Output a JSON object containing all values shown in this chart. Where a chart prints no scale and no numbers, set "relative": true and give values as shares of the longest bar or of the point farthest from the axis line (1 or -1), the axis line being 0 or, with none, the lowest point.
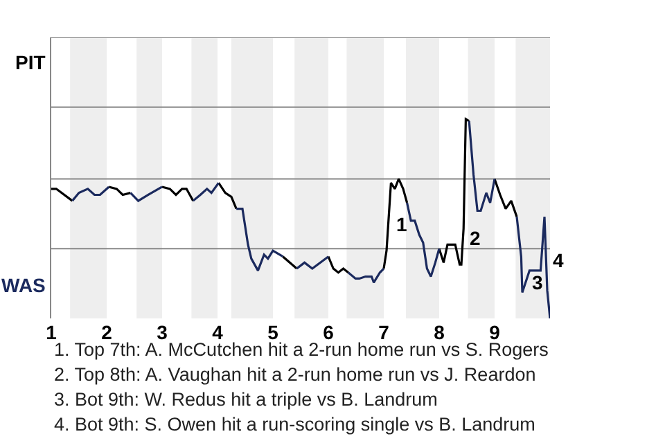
{
  "chart_data": {
    "type": "line",
    "relative": true,
    "xlim": [
      1,
      10
    ],
    "xticks": [
      1,
      2,
      3,
      4,
      5,
      6,
      7,
      8,
      9
    ],
    "ref_lines": [
      {
        "axis": "y",
        "value": 0.35,
        "color": "#888888"
      },
      {
        "axis": "y",
        "value": 0.7,
        "color": "#888888"
      },
      {
        "axis": "y",
        "value": 1.06,
        "color": "#888888"
      },
      {
        "axis": "y",
        "value": 1.41,
        "color": "#888888"
      }
    ],
    "marker": "none",
    "line_style": "solid",
    "series": [
      {
        "color": "#000000",
        "x": [
          1,
          1.09,
          1.38,
          null,
          2.04,
          2.18,
          2.29,
          2.43,
          null,
          3,
          3.14,
          3.25,
          3.36,
          3.44,
          3.56,
          null,
          4.02,
          4.14,
          4.25,
          4.34,
          null,
          5.18,
          5.43,
          null,
          6,
          6.09,
          6.18,
          6.27,
          6.36,
          null,
          7,
          7.05,
          7.13,
          7.2,
          7.27,
          7.35,
          7.42,
          null,
          8,
          8.08,
          8.15,
          8.29,
          8.37,
          8.4,
          8.44,
          8.48,
          8.54,
          null,
          9,
          9.1,
          9.2,
          9.3,
          9.4
        ],
        "values": [
          0.65,
          0.65,
          0.59,
          null,
          0.66,
          0.65,
          0.62,
          0.63,
          null,
          0.66,
          0.65,
          0.62,
          0.65,
          0.65,
          0.59,
          null,
          0.68,
          0.63,
          0.61,
          0.55,
          null,
          0.31,
          0.25,
          null,
          0.31,
          0.25,
          0.23,
          0.25,
          0.23,
          null,
          0.25,
          0.34,
          0.68,
          0.65,
          0.7,
          0.65,
          0.58,
          null,
          0.35,
          0.28,
          0.37,
          0.37,
          0.27,
          0.27,
          0.45,
          1,
          0.99,
          null,
          0.7,
          0.62,
          0.55,
          0.59,
          0.51
        ]
      },
      {
        "color": "#1b2a5e",
        "x": [
          1.38,
          1.5,
          1.66,
          1.78,
          1.88,
          2.04,
          null,
          2.43,
          2.57,
          2.75,
          3,
          null,
          3.56,
          3.69,
          3.81,
          3.89,
          4.02,
          null,
          4.34,
          4.45,
          4.55,
          4.61,
          4.73,
          4.84,
          4.91,
          5,
          5.18,
          null,
          5.43,
          5.57,
          5.71,
          6,
          null,
          6.36,
          6.49,
          6.56,
          6.67,
          6.78,
          6.82,
          6.93,
          7,
          null,
          7.42,
          7.49,
          7.56,
          7.64,
          7.71,
          7.78,
          7.85,
          7.93,
          8,
          null,
          8.54,
          8.62,
          8.69,
          8.75,
          8.85,
          8.92,
          9,
          null,
          9.4,
          9.48,
          9.5,
          9.63,
          9.83,
          9.9,
          9.95,
          10
        ],
        "values": [
          0.59,
          0.63,
          0.65,
          0.62,
          0.62,
          0.66,
          null,
          0.63,
          0.59,
          0.62,
          0.66,
          null,
          0.59,
          0.62,
          0.65,
          0.63,
          0.68,
          null,
          0.55,
          0.55,
          0.37,
          0.3,
          0.24,
          0.32,
          0.3,
          0.34,
          0.31,
          null,
          0.25,
          0.28,
          0.25,
          0.31,
          null,
          0.23,
          0.2,
          0.2,
          0.21,
          0.21,
          0.18,
          0.23,
          0.25,
          null,
          0.58,
          0.49,
          0.49,
          0.42,
          0.38,
          0.25,
          0.21,
          0.28,
          0.35,
          null,
          0.99,
          0.72,
          0.54,
          0.54,
          0.63,
          0.58,
          0.7,
          null,
          0.51,
          0.31,
          0.13,
          0.24,
          0.24,
          0.51,
          0.14,
          0
        ]
      }
    ],
    "bands": [
      {
        "axis": "x",
        "from": 1.34,
        "to": 2,
        "color": "#eeeeee"
      },
      {
        "axis": "x",
        "from": 2.54,
        "to": 3,
        "color": "#eeeeee"
      },
      {
        "axis": "x",
        "from": 3.53,
        "to": 4,
        "color": "#eeeeee"
      },
      {
        "axis": "x",
        "from": 4.25,
        "to": 5,
        "color": "#eeeeee"
      },
      {
        "axis": "x",
        "from": 5.39,
        "to": 6,
        "color": "#eeeeee"
      },
      {
        "axis": "x",
        "from": 6.33,
        "to": 7,
        "color": "#eeeeee"
      },
      {
        "axis": "x",
        "from": 7.4,
        "to": 8,
        "color": "#eeeeee"
      },
      {
        "axis": "x",
        "from": 8.52,
        "to": 9,
        "color": "#eeeeee"
      },
      {
        "axis": "x",
        "from": 9.38,
        "to": 10,
        "color": "#eeeeee"
      }
    ],
    "annotations": [
      "PIT",
      "WAS",
      {
        "text": "1",
        "x": 7.09,
        "y": 0.47
      },
      {
        "text": "2",
        "x": 8.43,
        "y": 0.4
      },
      {
        "text": "3",
        "x": 9.55,
        "y": 0.18
      },
      {
        "text": "4",
        "x": 9.93,
        "y": 0.29
      },
      "1. Top 7th: A. McCutchen hit a 2-run home run vs S. Rogers",
      "2. Top 8th: A. Vaughan hit a 2-run home run vs J. Reardon",
      "3. Bot 9th: W. Redus hit a triple vs B. Landrum",
      "4. Bot 9th: S. Owen hit a run-scoring single vs B. Landrum"
    ]
  }
}
